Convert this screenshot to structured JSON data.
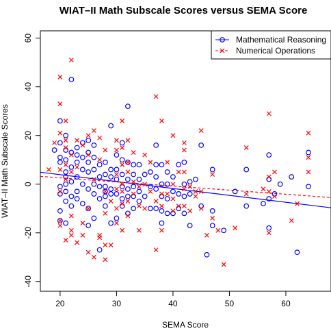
{
  "chart_data": {
    "type": "scatter",
    "title": "WIAT–II Math Subscale Scores versus SEMA Score",
    "xlabel": "SEMA Score",
    "ylabel": "WIAT–II Math Subscale Scores",
    "xlim": [
      16.5,
      68
    ],
    "ylim": [
      -44,
      63
    ],
    "xticks": [
      20,
      30,
      40,
      50,
      60
    ],
    "yticks": [
      -40,
      -20,
      0,
      20,
      40,
      60
    ],
    "grid": false,
    "legend_position": "top-right",
    "colors": {
      "blue": "#0000ff",
      "red": "#ff0000"
    },
    "series": [
      {
        "name": "Mathematical Reasoning",
        "marker": "circle",
        "line_style": "solid",
        "color": "#0000ff",
        "fit_line": {
          "x": [
            16.5,
            68
          ],
          "y": [
            4.9,
            -9.7
          ]
        },
        "points": [
          [
            19,
            14
          ],
          [
            20,
            26
          ],
          [
            20,
            17
          ],
          [
            20,
            11
          ],
          [
            20,
            9
          ],
          [
            20,
            -1
          ],
          [
            20,
            -4
          ],
          [
            20,
            -11
          ],
          [
            20,
            -15
          ],
          [
            21,
            20
          ],
          [
            21,
            14
          ],
          [
            21,
            10
          ],
          [
            21,
            5
          ],
          [
            21,
            3
          ],
          [
            21,
            0
          ],
          [
            21,
            -3
          ],
          [
            21,
            -7
          ],
          [
            21,
            -16
          ],
          [
            22,
            43
          ],
          [
            22,
            13
          ],
          [
            22,
            7
          ],
          [
            22,
            1
          ],
          [
            22,
            -5
          ],
          [
            22,
            -9
          ],
          [
            23,
            15
          ],
          [
            23,
            12
          ],
          [
            23,
            9
          ],
          [
            23,
            3
          ],
          [
            23,
            -3
          ],
          [
            23,
            -6
          ],
          [
            24,
            17
          ],
          [
            24,
            11
          ],
          [
            24,
            6
          ],
          [
            24,
            0
          ],
          [
            24,
            -8
          ],
          [
            25,
            18
          ],
          [
            25,
            13
          ],
          [
            25,
            9
          ],
          [
            25,
            5
          ],
          [
            25,
            -2
          ],
          [
            25,
            -10
          ],
          [
            25,
            -17
          ],
          [
            26,
            16
          ],
          [
            26,
            11
          ],
          [
            26,
            6
          ],
          [
            26,
            0
          ],
          [
            26,
            -4
          ],
          [
            26,
            -14
          ],
          [
            27,
            8
          ],
          [
            27,
            3
          ],
          [
            27,
            -1
          ],
          [
            27,
            -6
          ],
          [
            27,
            -27
          ],
          [
            28,
            9
          ],
          [
            28,
            4
          ],
          [
            28,
            -1
          ],
          [
            28,
            -3
          ],
          [
            28,
            -5
          ],
          [
            28,
            -9
          ],
          [
            29,
            24
          ],
          [
            29,
            6
          ],
          [
            29,
            3
          ],
          [
            29,
            -2
          ],
          [
            29,
            -4
          ],
          [
            29,
            -16
          ],
          [
            30,
            12
          ],
          [
            30,
            6
          ],
          [
            30,
            2
          ],
          [
            30,
            -4
          ],
          [
            30,
            -14
          ],
          [
            31,
            17
          ],
          [
            31,
            10
          ],
          [
            31,
            4
          ],
          [
            31,
            -1
          ],
          [
            31,
            -6
          ],
          [
            31,
            -9
          ],
          [
            32,
            32
          ],
          [
            32,
            9
          ],
          [
            32,
            2
          ],
          [
            32,
            -2
          ],
          [
            32,
            -5
          ],
          [
            32,
            -12
          ],
          [
            33,
            8
          ],
          [
            33,
            4
          ],
          [
            33,
            -1
          ],
          [
            33,
            -5
          ],
          [
            33,
            -10
          ],
          [
            34,
            8
          ],
          [
            34,
            2
          ],
          [
            34,
            -3
          ],
          [
            34,
            -7
          ],
          [
            35,
            4
          ],
          [
            35,
            -5
          ],
          [
            36,
            5
          ],
          [
            36,
            -1
          ],
          [
            36,
            -10
          ],
          [
            37,
            16
          ],
          [
            37,
            8
          ],
          [
            37,
            3
          ],
          [
            37,
            -2
          ],
          [
            37,
            -10
          ],
          [
            38,
            8
          ],
          [
            38,
            0
          ],
          [
            38,
            -5
          ],
          [
            38,
            -11
          ],
          [
            38,
            -16
          ],
          [
            39,
            5
          ],
          [
            39,
            0
          ],
          [
            39,
            -6
          ],
          [
            39,
            -12
          ],
          [
            40,
            3
          ],
          [
            40,
            -3
          ],
          [
            40,
            -12
          ],
          [
            41,
            8
          ],
          [
            41,
            -4
          ],
          [
            41,
            -10
          ],
          [
            42,
            9
          ],
          [
            42,
            0
          ],
          [
            42,
            -5
          ],
          [
            42,
            -12
          ],
          [
            43,
            1
          ],
          [
            43,
            -4
          ],
          [
            43,
            -17
          ],
          [
            44,
            2
          ],
          [
            45,
            16
          ],
          [
            45,
            -9
          ],
          [
            46,
            -29
          ],
          [
            47,
            6
          ],
          [
            47,
            -11
          ],
          [
            47,
            -17
          ],
          [
            49,
            -19
          ],
          [
            51,
            -3
          ],
          [
            53,
            6
          ],
          [
            53,
            -9
          ],
          [
            56,
            -8
          ],
          [
            57,
            12
          ],
          [
            57,
            2
          ],
          [
            57,
            -6
          ],
          [
            57,
            -18
          ],
          [
            58,
            -4
          ],
          [
            59,
            0
          ],
          [
            61,
            3
          ],
          [
            62,
            -28
          ],
          [
            64,
            13
          ],
          [
            64,
            -1
          ]
        ]
      },
      {
        "name": "Numerical Operations",
        "marker": "x",
        "line_style": "dashed",
        "color": "#ff0000",
        "fit_line": {
          "x": [
            16.5,
            68
          ],
          "y": [
            3.2,
            -5.5
          ]
        },
        "points": [
          [
            18,
            6
          ],
          [
            19,
            17
          ],
          [
            20,
            44
          ],
          [
            20,
            33
          ],
          [
            20,
            21
          ],
          [
            20,
            6
          ],
          [
            20,
            -3
          ],
          [
            20,
            -15
          ],
          [
            20,
            -17
          ],
          [
            21,
            26
          ],
          [
            21,
            18
          ],
          [
            21,
            15
          ],
          [
            21,
            8
          ],
          [
            21,
            2
          ],
          [
            21,
            -23
          ],
          [
            22,
            51
          ],
          [
            22,
            12
          ],
          [
            22,
            5
          ],
          [
            22,
            -13
          ],
          [
            22,
            -19
          ],
          [
            22,
            -21
          ],
          [
            23,
            18
          ],
          [
            23,
            7
          ],
          [
            23,
            -24
          ],
          [
            24,
            16
          ],
          [
            24,
            -16
          ],
          [
            24,
            -21
          ],
          [
            25,
            20
          ],
          [
            25,
            12
          ],
          [
            25,
            -10
          ],
          [
            25,
            -28
          ],
          [
            26,
            22
          ],
          [
            26,
            2
          ],
          [
            26,
            -30
          ],
          [
            27,
            19
          ],
          [
            27,
            10
          ],
          [
            27,
            -21
          ],
          [
            27,
            -22
          ],
          [
            28,
            14
          ],
          [
            28,
            -3
          ],
          [
            28,
            -12
          ],
          [
            28,
            -25
          ],
          [
            28,
            -31
          ],
          [
            29,
            -7
          ],
          [
            29,
            -25
          ],
          [
            30,
            18
          ],
          [
            30,
            14
          ],
          [
            30,
            4
          ],
          [
            30,
            -2
          ],
          [
            30,
            -10
          ],
          [
            30,
            -16
          ],
          [
            31,
            26
          ],
          [
            31,
            15
          ],
          [
            31,
            8
          ],
          [
            31,
            0
          ],
          [
            31,
            -3
          ],
          [
            31,
            -8
          ],
          [
            31,
            -19
          ],
          [
            32,
            18
          ],
          [
            32,
            9
          ],
          [
            32,
            5
          ],
          [
            32,
            -7
          ],
          [
            32,
            -13
          ],
          [
            33,
            13
          ],
          [
            33,
            1
          ],
          [
            33,
            -4
          ],
          [
            34,
            -1
          ],
          [
            34,
            -9
          ],
          [
            34,
            -19
          ],
          [
            35,
            12
          ],
          [
            35,
            0
          ],
          [
            35,
            -10
          ],
          [
            36,
            9
          ],
          [
            36,
            -3
          ],
          [
            37,
            36
          ],
          [
            37,
            -7
          ],
          [
            37,
            -27
          ],
          [
            38,
            26
          ],
          [
            38,
            -4
          ],
          [
            38,
            -9
          ],
          [
            38,
            -19
          ],
          [
            39,
            9
          ],
          [
            39,
            -4
          ],
          [
            40,
            20
          ],
          [
            40,
            0
          ],
          [
            40,
            -6
          ],
          [
            40,
            -11
          ],
          [
            41,
            5
          ],
          [
            41,
            -9
          ],
          [
            42,
            17
          ],
          [
            42,
            14
          ],
          [
            42,
            5
          ],
          [
            42,
            -2
          ],
          [
            42,
            -9
          ],
          [
            43,
            -1
          ],
          [
            43,
            -11
          ],
          [
            44,
            -3
          ],
          [
            44,
            -5
          ],
          [
            45,
            22
          ],
          [
            45,
            -3
          ],
          [
            45,
            -10
          ],
          [
            46,
            -21
          ],
          [
            47,
            4
          ],
          [
            47,
            -14
          ],
          [
            48,
            -19
          ],
          [
            49,
            -33
          ],
          [
            51,
            -18
          ],
          [
            53,
            15
          ],
          [
            53,
            -4
          ],
          [
            56,
            -2
          ],
          [
            57,
            29
          ],
          [
            57,
            3
          ],
          [
            57,
            -3
          ],
          [
            57,
            -20
          ],
          [
            58,
            5
          ],
          [
            58,
            -5
          ],
          [
            61,
            -15
          ],
          [
            62,
            -8
          ],
          [
            64,
            21
          ],
          [
            64,
            11
          ],
          [
            64,
            5
          ]
        ]
      }
    ]
  }
}
